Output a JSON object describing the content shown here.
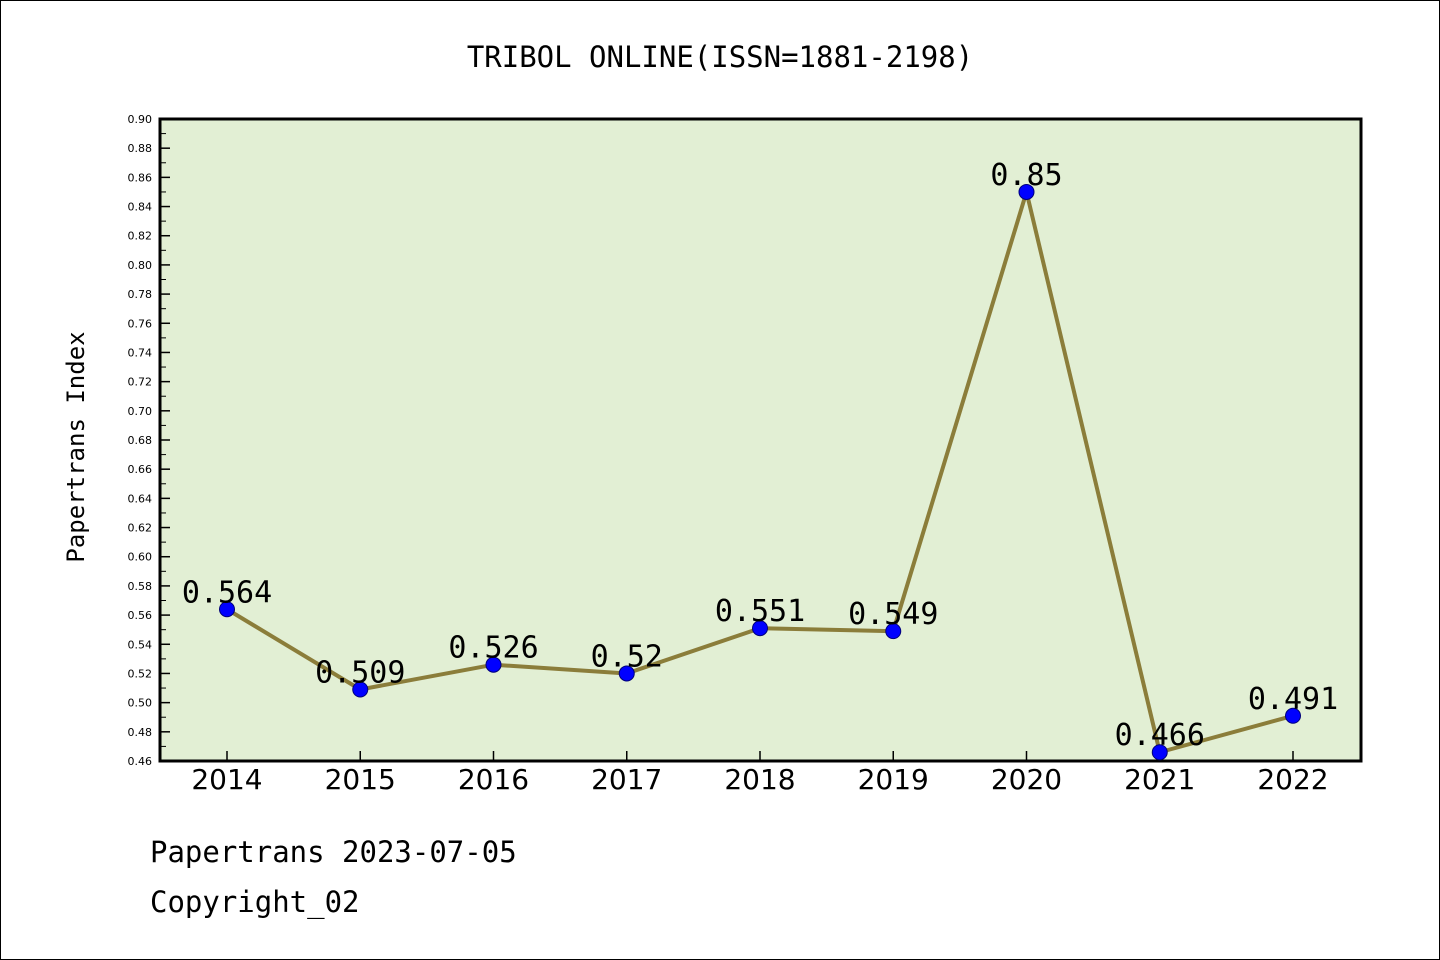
{
  "footer": {
    "line1": "Papertrans 2023-07-05",
    "line2": "Copyright_02"
  },
  "chart_data": {
    "type": "line",
    "title": "TRIBOL ONLINE(ISSN=1881-2198)",
    "xlabel": "",
    "ylabel": "Papertrans Index",
    "categories": [
      "2014",
      "2015",
      "2016",
      "2017",
      "2018",
      "2019",
      "2020",
      "2021",
      "2022"
    ],
    "series": [
      {
        "values": [
          0.564,
          0.509,
          0.526,
          0.52,
          0.551,
          0.549,
          0.85,
          0.466,
          0.491
        ],
        "labels": [
          "0.564",
          "0.509",
          "0.526",
          "0.52",
          "0.551",
          "0.549",
          "0.85",
          "0.466",
          "0.491"
        ]
      }
    ],
    "ylim": [
      0.46,
      0.9
    ],
    "yticks": [
      "0.46",
      "0.48",
      "0.50",
      "0.52",
      "0.54",
      "0.56",
      "0.58",
      "0.60",
      "0.62",
      "0.64",
      "0.66",
      "0.68",
      "0.70",
      "0.72",
      "0.74",
      "0.76",
      "0.78",
      "0.80",
      "0.82",
      "0.84",
      "0.86",
      "0.88",
      "0.90"
    ],
    "grid": false,
    "colors": {
      "plot_background": "#e2efd4",
      "line": "#8b7d3a",
      "marker": "#0000ff"
    }
  }
}
